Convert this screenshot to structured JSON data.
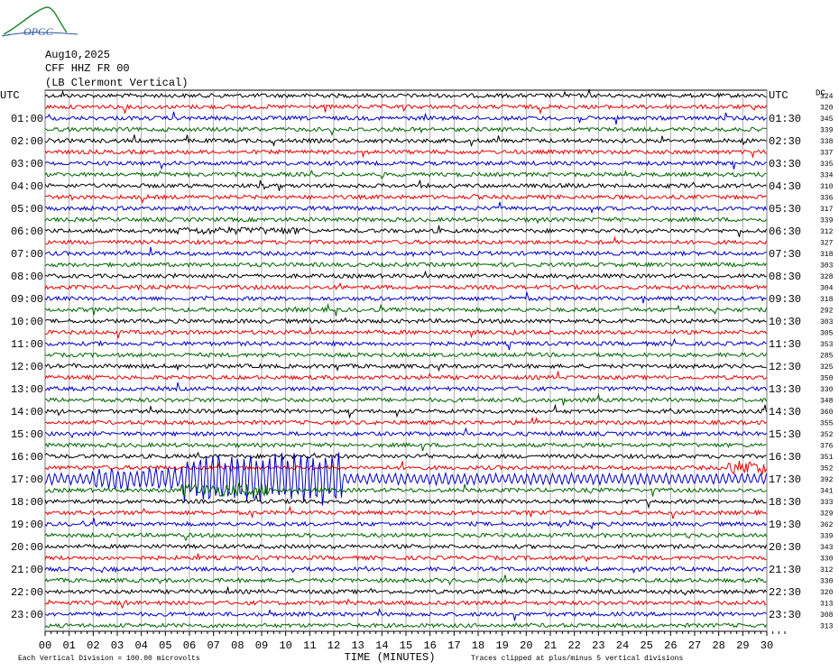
{
  "logo": "OPGC",
  "header": {
    "date": "Aug10,2025",
    "station": "CFF HHZ FR 00",
    "location": "(LB Clermont Vertical)"
  },
  "left_labels": [
    "UTC",
    "01:00",
    "02:00",
    "03:00",
    "04:00",
    "05:00",
    "06:00",
    "07:00",
    "08:00",
    "09:00",
    "10:00",
    "11:00",
    "12:00",
    "13:00",
    "14:00",
    "15:00",
    "16:00",
    "17:00",
    "18:00",
    "19:00",
    "20:00",
    "21:00",
    "22:00",
    "23:00"
  ],
  "right_labels": [
    "UTC",
    "01:30",
    "02:30",
    "03:30",
    "04:30",
    "05:30",
    "06:30",
    "07:30",
    "08:30",
    "09:30",
    "10:30",
    "11:30",
    "12:30",
    "13:30",
    "14:30",
    "15:30",
    "16:30",
    "17:30",
    "18:30",
    "19:30",
    "20:30",
    "21:30",
    "22:30",
    "23:30"
  ],
  "dc_header": "DC",
  "dc_values": [
    "324",
    "320",
    "345",
    "339",
    "338",
    "337",
    "335",
    "334",
    "310",
    "336",
    "317",
    "339",
    "312",
    "327",
    "318",
    "303",
    "328",
    "304",
    "318",
    "292",
    "303",
    "305",
    "353",
    "285",
    "325",
    "350",
    "330",
    "348",
    "360",
    "355",
    "352",
    "376",
    "351",
    "352",
    "392",
    "341",
    "333",
    "329",
    "362",
    "339",
    "343",
    "330",
    "312",
    "330",
    "320",
    "313",
    "308",
    "313"
  ],
  "minute_labels": [
    "00",
    "01",
    "02",
    "03",
    "04",
    "05",
    "06",
    "07",
    "08",
    "09",
    "10",
    "11",
    "12",
    "13",
    "14",
    "15",
    "16",
    "17",
    "18",
    "19",
    "20",
    "21",
    "22",
    "23",
    "24",
    "25",
    "26",
    "27",
    "28",
    "29",
    "30"
  ],
  "footer": {
    "scale": "Each Vertical Division =  100.00 microvolts",
    "axis_title": "TIME (MINUTES)",
    "clip_note": "Traces clipped at plus/minus 5 vertical divisions"
  }
}
